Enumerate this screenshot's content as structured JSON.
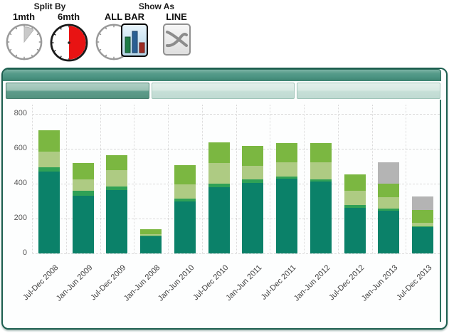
{
  "controls": {
    "split_by": {
      "title": "Split By",
      "options": [
        {
          "label": "1mth",
          "state": "small-slice"
        },
        {
          "label": "6mth",
          "state": "half-selected"
        },
        {
          "label": "ALL",
          "state": "empty"
        }
      ]
    },
    "show_as": {
      "title": "Show As",
      "options": [
        {
          "label": "BAR",
          "selected": true
        },
        {
          "label": "LINE",
          "selected": false
        }
      ]
    }
  },
  "panel": {
    "tabs": [
      {
        "label": "",
        "selected": true
      },
      {
        "label": "",
        "selected": false
      },
      {
        "label": "",
        "selected": false
      }
    ]
  },
  "chart_data": {
    "type": "bar",
    "stacked": true,
    "title": "",
    "xlabel": "",
    "ylabel": "",
    "ylim": [
      0,
      800
    ],
    "yticks": [
      0,
      200,
      400,
      600,
      800
    ],
    "grid": true,
    "legend": "none",
    "categories": [
      "Jul-Dec 2008",
      "Jan-Jun 2009",
      "Jul-Dec 2009",
      "Jan-Jun 2008",
      "Jan-Jun 2010",
      "Jul-Dec 2010",
      "Jan-Jun 2011",
      "Jul-Dec 2011",
      "Jan-Jun 2012",
      "Jul-Dec 2012",
      "Jan-Jun 2013",
      "Jul-Dec 2013"
    ],
    "series": [
      {
        "name": "segment-dark-teal",
        "color": "#0B8169",
        "values": [
          470,
          330,
          363,
          98,
          298,
          380,
          404,
          430,
          412,
          261,
          245,
          150
        ]
      },
      {
        "name": "segment-medium-green",
        "color": "#2FA156",
        "values": [
          24,
          30,
          20,
          5,
          16,
          20,
          20,
          10,
          12,
          17,
          12,
          4
        ]
      },
      {
        "name": "segment-light-green",
        "color": "#AECB83",
        "values": [
          90,
          65,
          93,
          8,
          82,
          118,
          78,
          82,
          98,
          81,
          65,
          22
        ]
      },
      {
        "name": "segment-bright-green",
        "color": "#7BB741",
        "values": [
          122,
          95,
          87,
          26,
          110,
          119,
          114,
          111,
          111,
          94,
          78,
          74
        ]
      },
      {
        "name": "segment-gray",
        "color": "#B4B4B4",
        "values": [
          0,
          0,
          0,
          0,
          0,
          0,
          0,
          0,
          0,
          0,
          122,
          76
        ]
      }
    ],
    "totals": [
      706,
      520,
      563,
      137,
      506,
      637,
      616,
      633,
      633,
      453,
      522,
      326
    ]
  },
  "colors": {
    "panel_border": "#1D5F50",
    "band_teal": "#4D9584",
    "selected_red": "#E81313",
    "grid": "#D9D9D9"
  }
}
